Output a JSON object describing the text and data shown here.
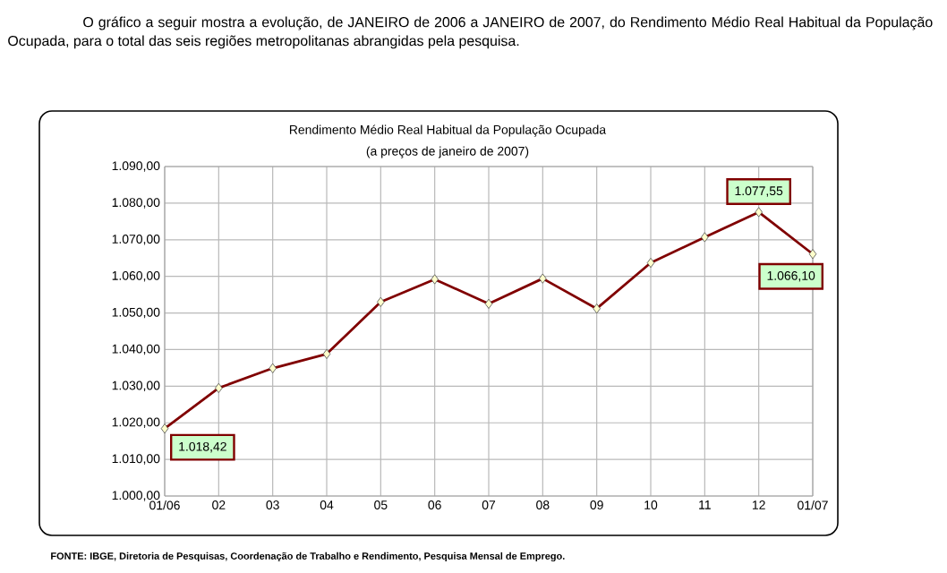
{
  "chart_data": {
    "type": "line",
    "title": "Rendimento Médio Real Habitual da População Ocupada",
    "subtitle": "(a preços de janeiro de 2007)",
    "categories": [
      "01/06",
      "02",
      "03",
      "04",
      "05",
      "06",
      "07",
      "08",
      "09",
      "10",
      "11",
      "12",
      "01/07"
    ],
    "series": [
      {
        "color": "#800000",
        "values": [
          1018.42,
          1029.5,
          1034.9,
          1038.8,
          1053.0,
          1059.2,
          1052.5,
          1059.4,
          1051.2,
          1063.7,
          1070.7,
          1077.55,
          1066.1
        ]
      }
    ],
    "ylim": [
      1000,
      1090
    ],
    "yticks": [
      {
        "value": 1000,
        "label": "1.000,00"
      },
      {
        "value": 1010,
        "label": "1.010,00"
      },
      {
        "value": 1020,
        "label": "1.020,00"
      },
      {
        "value": 1030,
        "label": "1.030,00"
      },
      {
        "value": 1040,
        "label": "1.040,00"
      },
      {
        "value": 1050,
        "label": "1.050,00"
      },
      {
        "value": 1060,
        "label": "1.060,00"
      },
      {
        "value": 1070,
        "label": "1.070,00"
      },
      {
        "value": 1080,
        "label": "1.080,00"
      },
      {
        "value": 1090,
        "label": "1.090,00"
      }
    ],
    "grid": true,
    "marker": "diamond",
    "line_style": "solid",
    "annotations": [
      "O gráfico a seguir mostra a evolução, de JANEIRO de 2006 a JANEIRO de 2007, do Rendimento Médio Real Habitual da População Ocupada, para o total das seis regiões metropolitanas abrangidas pela pesquisa.",
      {
        "text": "1.018,42",
        "x": "01/06",
        "y": 1018.42
      },
      {
        "text": "1.077,55",
        "x": "12",
        "y": 1077.55
      },
      {
        "text": "1.066,10",
        "x": "01/07",
        "y": 1066.1
      },
      "FONTE: IBGE, Diretoria de Pesquisas, Coordenação de Trabalho e Rendimento, Pesquisa Mensal de Emprego."
    ]
  }
}
